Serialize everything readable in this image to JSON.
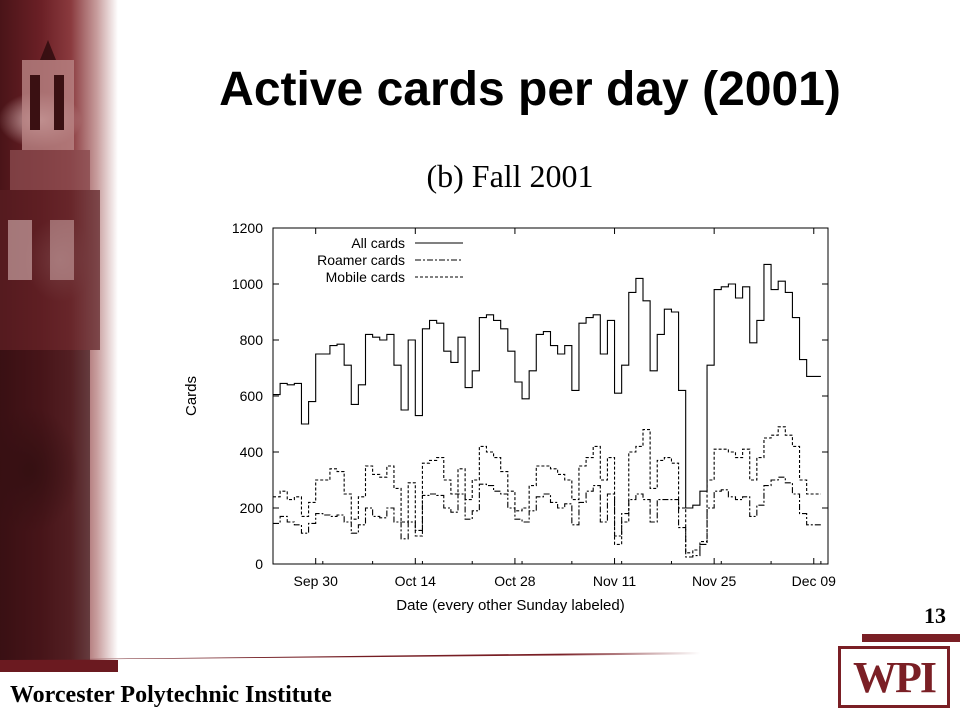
{
  "slide": {
    "title": "Active cards per day (2001)",
    "number": "13",
    "institute": "Worcester Polytechnic Institute",
    "logo_text": "WPI"
  },
  "colors": {
    "accent": "#7a1f25",
    "photo_dark": "#4a1418"
  },
  "chart_data": {
    "type": "line",
    "subtitle": "(b) Fall 2001",
    "xlabel": "Date (every other Sunday labeled)",
    "ylabel": "Cards",
    "ylim": [
      0,
      1200
    ],
    "yticks": [
      0,
      200,
      400,
      600,
      800,
      1000,
      1200
    ],
    "xticks": [
      {
        "label": "Sep 30",
        "day": 0
      },
      {
        "label": "Oct 14",
        "day": 14
      },
      {
        "label": "Oct 28",
        "day": 28
      },
      {
        "label": "Nov 11",
        "day": 42
      },
      {
        "label": "Nov 25",
        "day": 56
      },
      {
        "label": "Dec 09",
        "day": 70
      }
    ],
    "x_start_day": -6,
    "x_end_day": 72,
    "legend_position": "top-left",
    "series": [
      {
        "name": "All cards",
        "dash": "none",
        "values": [
          605,
          645,
          640,
          645,
          500,
          580,
          750,
          750,
          780,
          785,
          710,
          570,
          640,
          820,
          810,
          800,
          820,
          710,
          550,
          800,
          530,
          840,
          870,
          860,
          760,
          720,
          810,
          630,
          690,
          880,
          890,
          870,
          840,
          760,
          650,
          590,
          690,
          820,
          830,
          780,
          750,
          780,
          620,
          860,
          880,
          890,
          750,
          870,
          610,
          710,
          970,
          1020,
          940,
          690,
          820,
          910,
          900,
          620,
          200,
          210,
          260,
          710,
          980,
          990,
          1000,
          950,
          990,
          790,
          870,
          1070,
          980,
          1010,
          970,
          880,
          730,
          670,
          670
        ]
      },
      {
        "name": "Roamer cards",
        "dash": "6,2,2,2",
        "values": [
          145,
          170,
          150,
          140,
          110,
          145,
          180,
          175,
          170,
          175,
          150,
          110,
          140,
          200,
          170,
          165,
          200,
          150,
          90,
          150,
          120,
          245,
          250,
          245,
          200,
          185,
          250,
          160,
          190,
          285,
          280,
          260,
          250,
          200,
          160,
          150,
          190,
          240,
          250,
          220,
          200,
          215,
          140,
          220,
          260,
          280,
          150,
          250,
          100,
          180,
          230,
          250,
          230,
          150,
          230,
          230,
          230,
          130,
          25,
          30,
          70,
          200,
          260,
          265,
          240,
          230,
          240,
          170,
          210,
          280,
          300,
          310,
          290,
          250,
          180,
          140,
          140
        ]
      },
      {
        "name": "Mobile cards",
        "dash": "3,2",
        "values": [
          240,
          260,
          230,
          240,
          170,
          220,
          300,
          300,
          340,
          330,
          250,
          160,
          240,
          350,
          320,
          310,
          350,
          270,
          150,
          290,
          100,
          360,
          370,
          380,
          300,
          250,
          340,
          230,
          300,
          420,
          400,
          380,
          330,
          260,
          190,
          200,
          280,
          350,
          350,
          340,
          320,
          300,
          230,
          350,
          380,
          420,
          300,
          380,
          70,
          150,
          400,
          420,
          480,
          270,
          370,
          380,
          360,
          200,
          40,
          50,
          80,
          300,
          410,
          410,
          400,
          380,
          410,
          300,
          380,
          450,
          460,
          490,
          460,
          420,
          300,
          250,
          250
        ]
      }
    ]
  }
}
